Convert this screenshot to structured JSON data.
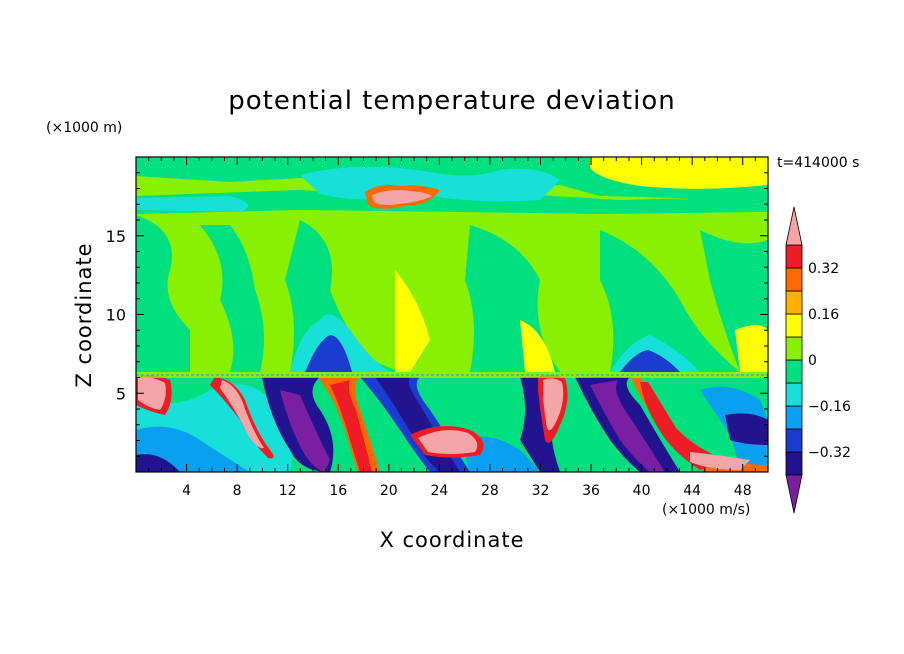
{
  "chart_data": {
    "type": "heatmap",
    "title": "potential temperature deviation",
    "xlabel": "X coordinate",
    "ylabel": "Z coordinate",
    "x_unit": "(×1000 m/s)",
    "z_unit": "(×1000 m)",
    "time_label": "t=414000 s",
    "xlim": [
      0,
      50
    ],
    "ylim": [
      0,
      20
    ],
    "x_ticks": [
      4,
      8,
      12,
      16,
      20,
      24,
      28,
      32,
      36,
      40,
      44,
      48
    ],
    "y_ticks": [
      5,
      10,
      15
    ],
    "colorbar": {
      "levels": [
        -0.4,
        -0.32,
        -0.24,
        -0.16,
        -0.08,
        0,
        0.08,
        0.16,
        0.24,
        0.32,
        0.4
      ],
      "tick_labels": [
        "0.32",
        "0.16",
        "0",
        "−0.16",
        "−0.32"
      ],
      "tick_values": [
        0.32,
        0.16,
        0,
        -0.16,
        -0.32
      ],
      "under_color": "#7a1fa2",
      "over_color": "#f4a6a6",
      "colors": [
        "#22138f",
        "#1a3ccf",
        "#0aa0f0",
        "#16e0d8",
        "#00e07e",
        "#88f000",
        "#ffff00",
        "#ffb000",
        "#ff6a00",
        "#ee1c24"
      ],
      "extend": "both"
    }
  }
}
